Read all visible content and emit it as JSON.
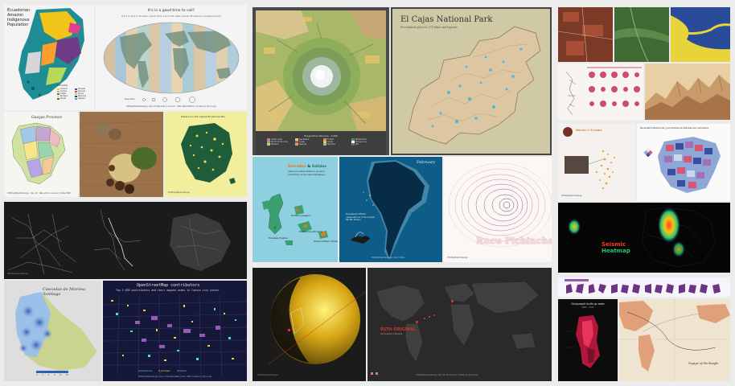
{
  "colors": {
    "background": "#ececec",
    "dark_panel": "#1b1b1b",
    "teal": "#1d7f8c",
    "amber": "#d99a1e",
    "ocean_blue": "#0d5d88",
    "heat_red": "#e84b1c"
  },
  "panels": {
    "amazon": {
      "title": "Ecuadorian\nAmazon\nIndigenous\nPopulation",
      "legend_title": "Ethnicity",
      "legend_items": [
        "Achuar",
        "Shiwiar",
        "Andoa",
        "Secoya",
        "Cofán",
        "Siona",
        "Kichwa",
        "Waorani",
        "Shuar",
        "Zápara"
      ],
      "icon": "map-icon"
    },
    "globe": {
      "title": "It's in a good time to call?",
      "subtitle": "It's 9 o'clock in Ecuador, which time is it in the other places? Ecuadorian emigrants live?",
      "legend_label": "Population",
      "footer": "#30DayMapChallenge | Day 14: Map with a new tool · Data: NaturalEarth | Created by @irvrouge"
    },
    "guayas": {
      "title": "Guayas Province",
      "footer": "#30DayMapChallenge · Day 16 · Map with a new tool | Data: INEC"
    },
    "food": {
      "icon": "photo-icon"
    },
    "tungurahua": {
      "title": "Distance to the nearest Ecuadorian Bar",
      "footer": "#30DayMapChallenge"
    },
    "cajas": {
      "title": "El Cajas National Park",
      "subtitle": "Pre-eminent place to 270 lakes and lagoons"
    },
    "volcano": {
      "legend_title": "Tungurahua Volcano - 1:25k",
      "legend_items": [
        "Urban area",
        "Sandbank",
        "Forest",
        "Watershed",
        "Short scrub crop",
        "Fruits",
        "Grass",
        "Snow & ice",
        "Paramo",
        "Pasture",
        "Shadow",
        "Rill"
      ]
    },
    "galapagos": {
      "title_part1": "Entradas",
      "title_amp": "&",
      "title_part2": "Salidas",
      "subtitle": "internacionales 2020 en puertos marítimos de las Islas Galápagos",
      "labels": [
        "PSI Baltra 2 pasajeros",
        "PSI Santa Cruz 480 salidas",
        "PSI Isabela 76 salidas",
        "PSI San Cristóbal 1 entrada"
      ]
    },
    "whales": {
      "title": "February",
      "caption": "Humpback Whale observations in the South Pacific Ocean",
      "footer": "#30DayMapChallenge | Day 6: Blue"
    },
    "contour": {
      "title": "Rucu Pichincha",
      "footer": "#30DayMapChallenge"
    },
    "zipf": {
      "title": "Women in Ecuador",
      "footer": "#30DayMapChallenge"
    },
    "density": {
      "title": "Densidad poblacional y porcentaje de pobreza por parroquia"
    },
    "seismic": {
      "title_part1": "Seismic",
      "title_part2": "Heatmap"
    },
    "lines": {
      "footer": "#30DayMapChallenge"
    },
    "morona": {
      "title": "Cascadas de Morona Santiago",
      "legend_values": [
        "0",
        "2",
        "4",
        "6",
        "8",
        "10"
      ]
    },
    "osm": {
      "title": "OpenStreetMap contributors",
      "subtitle": "Top 3 OSM contributors and their mapped nodes in Cuenca city center",
      "legend": [
        "jomacuenca",
        "lt_harrigan",
        "jfcedeno"
      ],
      "footer": "#30DayMapChallenge | Day 5: OpenStreetMap | Data: OSM | Created by @irvrouge"
    },
    "sun": {
      "footer": "#30DayMapChallenge"
    },
    "worldmap": {
      "label": "RUTA ORIGINAL",
      "sublabel": "de Ecuador a España",
      "footer": "#30DayMapChallenge | Day 20: Movement | Created by @irvrouge"
    },
    "guayaquil": {
      "title": "Guayaquil built-up area",
      "subtitle": "1985 – 2015"
    },
    "voyage": {
      "caption": "Voyage of the Beagle"
    }
  }
}
